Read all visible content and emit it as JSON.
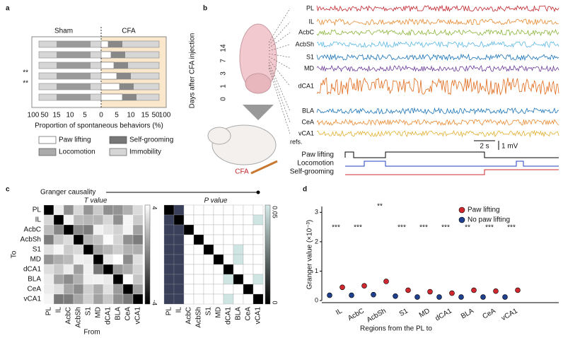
{
  "panel_a": {
    "label": "a",
    "sham": "Sham",
    "cfa": "CFA",
    "x_ticks": [
      "100",
      "50",
      "15",
      "10",
      "5",
      "0",
      "5",
      "10",
      "15",
      "50",
      "100"
    ],
    "x_label": "Proportion of spontaneous behaviors (%)",
    "y_label": "Days after CFA injection",
    "days": [
      "0",
      "1",
      "3",
      "7",
      "14"
    ],
    "significance": [
      "**",
      "**"
    ],
    "legend": [
      "Paw lifting",
      "Self-grooming",
      "Locomotion",
      "Immobility"
    ]
  },
  "panel_b": {
    "label": "b",
    "regions": [
      "PL",
      "IL",
      "AcbC",
      "AcbSh",
      "S1",
      "MD",
      "dCA1",
      "BLA",
      "CeA",
      "vCA1"
    ],
    "refs": "refs.",
    "time_scale": "2 s",
    "volt_scale": "1 mV",
    "behaviors": [
      "Paw lifting",
      "Locomotion",
      "Self-grooming"
    ],
    "cfa": "CFA"
  },
  "panel_c": {
    "label": "c",
    "title": "Granger causality",
    "t_title": "T value",
    "p_title": "P value",
    "regions": [
      "PL",
      "IL",
      "AcbC",
      "AcbSh",
      "S1",
      "MD",
      "dCA1",
      "BLA",
      "CeA",
      "vCA1"
    ],
    "y_label": "To",
    "x_label": "From",
    "t_bar": [
      "4",
      "-4"
    ],
    "p_bar": [
      "0.05",
      "0"
    ]
  },
  "chart_data": {
    "type": "dot",
    "label": "d",
    "y_label": "Granger value (×10⁻³)",
    "x_label": "Regions from the PL to",
    "categories": [
      "IL",
      "AcbC",
      "AcbSh",
      "S1",
      "MD",
      "dCA1",
      "BLA",
      "CeA",
      "vCA1"
    ],
    "series": [
      {
        "name": "Paw lifting",
        "color": "#d0282e",
        "values": [
          0.45,
          0.5,
          0.65,
          0.35,
          0.3,
          0.25,
          0.35,
          0.32,
          0.35
        ]
      },
      {
        "name": "No paw lifting",
        "color": "#1f3f8f",
        "values": [
          0.18,
          0.18,
          0.2,
          0.15,
          0.12,
          0.12,
          0.12,
          0.12,
          0.12
        ]
      }
    ],
    "annotations": [
      "***",
      "***",
      "**",
      "***",
      "***",
      "***",
      "**",
      "***",
      "***"
    ],
    "ylim": [
      0,
      3.2
    ],
    "yticks": [
      0,
      1,
      2,
      3
    ]
  }
}
